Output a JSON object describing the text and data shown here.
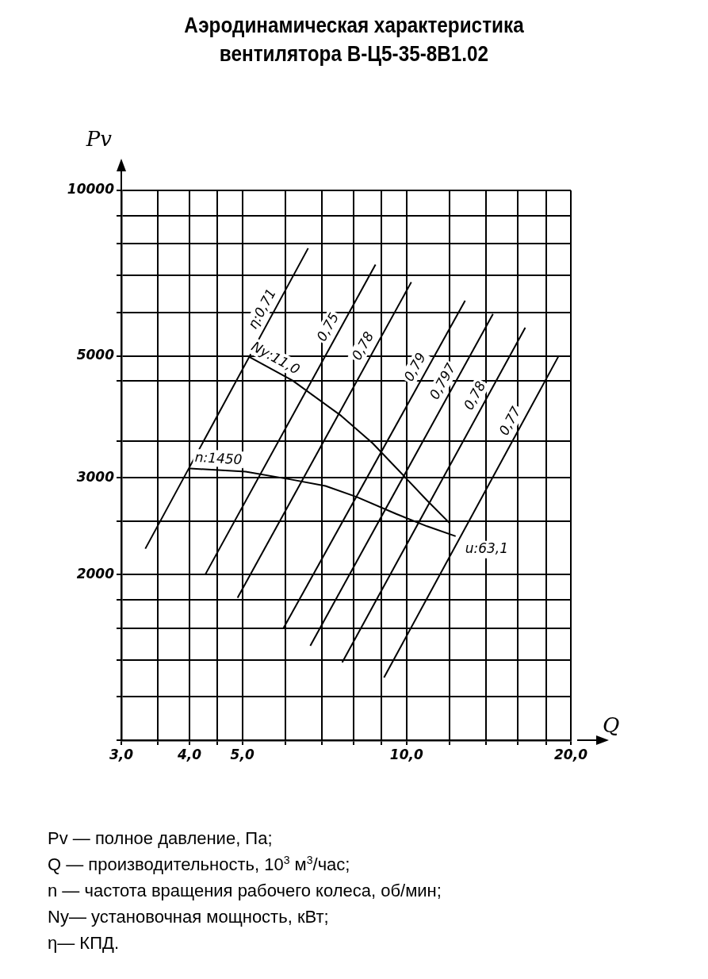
{
  "chart_data": {
    "type": "line",
    "title": "Аэродинамическая характеристика вентилятора В-Ц5-35-8В1.02",
    "xlabel": "Q",
    "ylabel": "Pv",
    "log": "xy",
    "xlim": [
      3,
      20
    ],
    "ylim": [
      1000,
      10000
    ],
    "xticks": [
      {
        "value": 3,
        "label": "3,0"
      },
      {
        "value": 3.5,
        "label": null
      },
      {
        "value": 4,
        "label": "4,0"
      },
      {
        "value": 4.5,
        "label": null
      },
      {
        "value": 5,
        "label": "5,0"
      },
      {
        "value": 6,
        "label": null
      },
      {
        "value": 7,
        "label": null
      },
      {
        "value": 8,
        "label": null
      },
      {
        "value": 9,
        "label": null
      },
      {
        "value": 10,
        "label": "10,0"
      },
      {
        "value": 12,
        "label": null
      },
      {
        "value": 14,
        "label": null
      },
      {
        "value": 16,
        "label": null
      },
      {
        "value": 18,
        "label": null
      },
      {
        "value": 20,
        "label": "20,0"
      }
    ],
    "yticks": [
      {
        "value": 1000,
        "label": null
      },
      {
        "value": 1200,
        "label": null
      },
      {
        "value": 1400,
        "label": null
      },
      {
        "value": 1600,
        "label": null
      },
      {
        "value": 1800,
        "label": null
      },
      2000,
      {
        "value": 2500,
        "label": null
      },
      3000,
      {
        "value": 3500,
        "label": null
      },
      {
        "value": 4500,
        "label": null
      },
      5000,
      {
        "value": 6000,
        "label": null
      },
      {
        "value": 7000,
        "label": null
      },
      {
        "value": 8000,
        "label": null
      },
      {
        "value": 9000,
        "label": null
      },
      10000
    ],
    "grid": true,
    "legend": false,
    "marker": "none",
    "line_style": "solid",
    "series": [
      {
        "name": "n:1450",
        "color": "#000000",
        "x": [
          4.01,
          5.07,
          6.14,
          7.1,
          8.1,
          9.57,
          10.9,
          12.3
        ],
        "values": [
          3120,
          3080,
          2980,
          2900,
          2770,
          2580,
          2450,
          2350
        ]
      },
      {
        "name": "Ny:11,0",
        "color": "#000000",
        "x": [
          5.11,
          6.18,
          7.59,
          8.66,
          9.9,
          10.9,
          12.0
        ],
        "values": [
          5000,
          4510,
          3890,
          3470,
          3020,
          2730,
          2480
        ]
      },
      {
        "name": "η:0,71",
        "color": "#000000",
        "x": [
          3.32,
          6.6
        ],
        "values": [
          2230,
          7850
        ]
      },
      {
        "name": "0,75",
        "color": "#000000",
        "x": [
          4.28,
          8.77
        ],
        "values": [
          2005,
          7330
        ]
      },
      {
        "name": "0,78",
        "color": "#000000",
        "x": [
          4.9,
          10.2
        ],
        "values": [
          1815,
          6810
        ]
      },
      {
        "name": "0,79",
        "color": "#000000",
        "x": [
          5.95,
          12.8
        ],
        "values": [
          1600,
          6300
        ]
      },
      {
        "name": "0,797",
        "color": "#000000",
        "x": [
          6.66,
          14.4
        ],
        "values": [
          1485,
          5960
        ]
      },
      {
        "name": "0,78",
        "color": "#000000",
        "x": [
          7.62,
          16.5
        ],
        "values": [
          1385,
          5630
        ]
      },
      {
        "name": "0,77",
        "color": "#000000",
        "x": [
          9.09,
          19.0
        ],
        "values": [
          1300,
          5000
        ]
      }
    ],
    "annotations": [
      {
        "text": "u:63,1",
        "x": 12.3,
        "y": 2350
      },
      "Pv — полное давление, Па;",
      "Q — производительность, 10$^{3}$ м$^{3}$/час;",
      "n — частота вращения рабочего колеса, об/мин;",
      "Ny— установочная мощность, кВт;",
      "η— КПД."
    ]
  }
}
